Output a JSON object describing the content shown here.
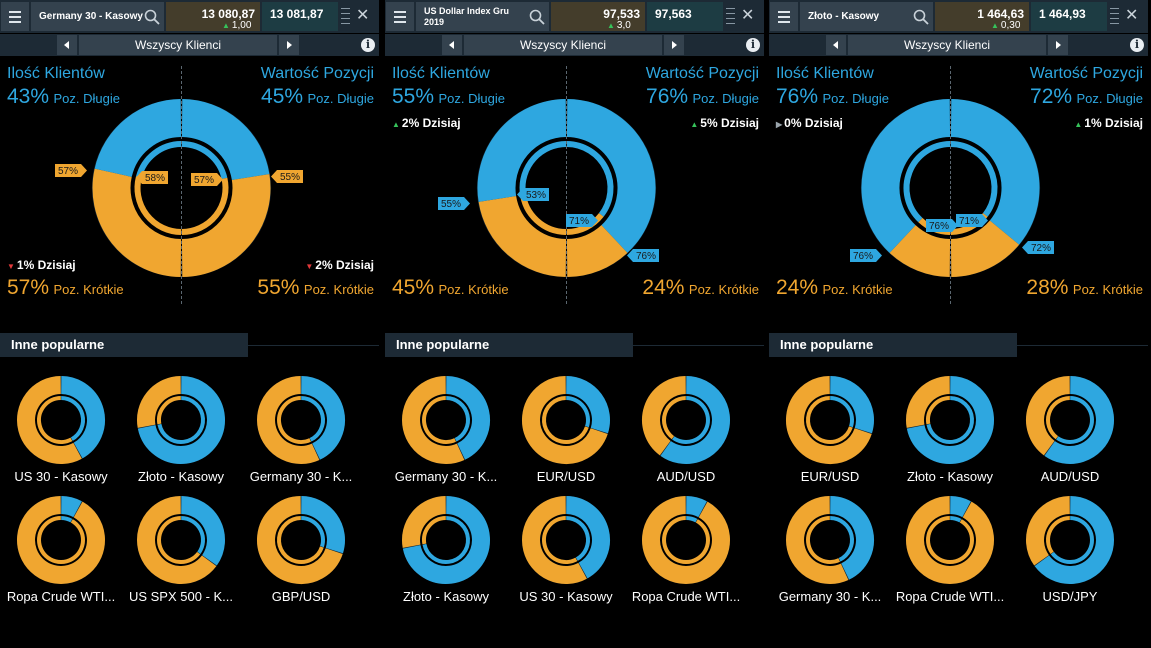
{
  "panels": [
    {
      "title": "Germany 30 - Kasowy",
      "title_two_line": false,
      "sell_price": "13 080,87",
      "buy_price": "13 081,87",
      "spread": "1,00",
      "nav_label": "Wszyscy Klienci",
      "clients_heading": "Ilość Klientów",
      "value_heading": "Wartość Pozycji",
      "clients_long_pct": "43%",
      "clients_long_label": "Poz. Długie",
      "value_long_pct": "45%",
      "value_long_label": "Poz. Długie",
      "clients_short_pct": "57%",
      "clients_short_label": "Poz. Krótkie",
      "value_short_pct": "55%",
      "value_short_label": "Poz. Krótkie",
      "clients_change": "1% Dzisiaj",
      "value_change": "2% Dzisiaj",
      "clients_change_dir": "down",
      "value_change_dir": "down",
      "change_position": "bottom",
      "chart": {
        "outer_long": 43,
        "inner_long": 42,
        "inner_long_2": 43,
        "value_long": 45
      },
      "badges": {
        "outer_left": "57%",
        "inner_left": "58%",
        "inner_right": "57%",
        "outer_right": "55%"
      },
      "badge_color": "#f0a630",
      "section_label": "Inne popularne",
      "tiles": [
        {
          "name": "US 30 - Kasowy",
          "long": 42,
          "dominant": "short"
        },
        {
          "name": "Złoto - Kasowy",
          "long": 72,
          "dominant": "long"
        },
        {
          "name": "Germany 30 - K...",
          "long": 43,
          "dominant": "short"
        },
        {
          "name": "Ropa Crude WTI...",
          "long": 8,
          "dominant": "short"
        },
        {
          "name": "US SPX 500 - K...",
          "long": 35,
          "dominant": "short"
        },
        {
          "name": "GBP/USD",
          "long": 30,
          "dominant": "short"
        }
      ]
    },
    {
      "title": "US Dollar Index Gru 2019",
      "title_two_line": true,
      "sell_price": "97,533",
      "buy_price": "97,563",
      "spread": "3,0",
      "nav_label": "Wszyscy Klienci",
      "clients_heading": "Ilość Klientów",
      "value_heading": "Wartość Pozycji",
      "clients_long_pct": "55%",
      "clients_long_label": "Poz. Długie",
      "value_long_pct": "76%",
      "value_long_label": "Poz. Długie",
      "clients_short_pct": "45%",
      "clients_short_label": "Poz. Krótkie",
      "value_short_pct": "24%",
      "value_short_label": "Poz. Krótkie",
      "clients_change": "2% Dzisiaj",
      "value_change": "5% Dzisiaj",
      "clients_change_dir": "up",
      "value_change_dir": "up",
      "change_position": "top",
      "chart": {
        "outer_long": 55,
        "inner_long": 53,
        "inner_long_2": 71,
        "value_long": 76
      },
      "badges": {
        "outer_left": "55%",
        "inner_left": "53%",
        "inner_right": "71%",
        "outer_right": "76%"
      },
      "badge_color": "#2ea7e0",
      "section_label": "Inne popularne",
      "tiles": [
        {
          "name": "Germany 30 - K...",
          "long": 43,
          "dominant": "short"
        },
        {
          "name": "EUR/USD",
          "long": 30,
          "dominant": "short"
        },
        {
          "name": "AUD/USD",
          "long": 60,
          "dominant": "long"
        },
        {
          "name": "Złoto - Kasowy",
          "long": 72,
          "dominant": "long"
        },
        {
          "name": "US 30 - Kasowy",
          "long": 42,
          "dominant": "short"
        },
        {
          "name": "Ropa Crude WTI...",
          "long": 8,
          "dominant": "short"
        }
      ]
    },
    {
      "title": "Złoto - Kasowy",
      "title_two_line": false,
      "sell_price": "1 464,63",
      "buy_price": "1 464,93",
      "spread": "0,30",
      "nav_label": "Wszyscy Klienci",
      "clients_heading": "Ilość Klientów",
      "value_heading": "Wartość Pozycji",
      "clients_long_pct": "76%",
      "clients_long_label": "Poz. Długie",
      "value_long_pct": "72%",
      "value_long_label": "Poz. Długie",
      "clients_short_pct": "24%",
      "clients_short_label": "Poz. Krótkie",
      "value_short_pct": "28%",
      "value_short_label": "Poz. Krótkie",
      "clients_change": "0% Dzisiaj",
      "value_change": "1% Dzisiaj",
      "clients_change_dir": "flat",
      "value_change_dir": "up",
      "change_position": "top",
      "chart": {
        "outer_long": 76,
        "inner_long": 76,
        "inner_long_2": 71,
        "value_long": 72
      },
      "badges": {
        "outer_left": "76%",
        "inner_left": "76%",
        "inner_right": "71%",
        "outer_right": "72%"
      },
      "badge_color": "#2ea7e0",
      "section_label": "Inne popularne",
      "tiles": [
        {
          "name": "EUR/USD",
          "long": 30,
          "dominant": "short"
        },
        {
          "name": "Złoto - Kasowy",
          "long": 72,
          "dominant": "long"
        },
        {
          "name": "AUD/USD",
          "long": 60,
          "dominant": "long"
        },
        {
          "name": "Germany 30 - K...",
          "long": 43,
          "dominant": "short"
        },
        {
          "name": "Ropa Crude WTI...",
          "long": 8,
          "dominant": "short"
        },
        {
          "name": "USD/JPY",
          "long": 65,
          "dominant": "long"
        }
      ]
    }
  ],
  "colors": {
    "long": "#2ea7e0",
    "short": "#f0a630",
    "ring_bg": "#142430",
    "up": "#36c25a",
    "down": "#e2393b",
    "flat": "#9aa4ab"
  },
  "icons": {
    "menu": "hamburger-icon",
    "search": "search-icon",
    "close": "close-icon",
    "info": "info-icon",
    "prev": "chevron-left-icon",
    "next": "chevron-right-icon"
  }
}
